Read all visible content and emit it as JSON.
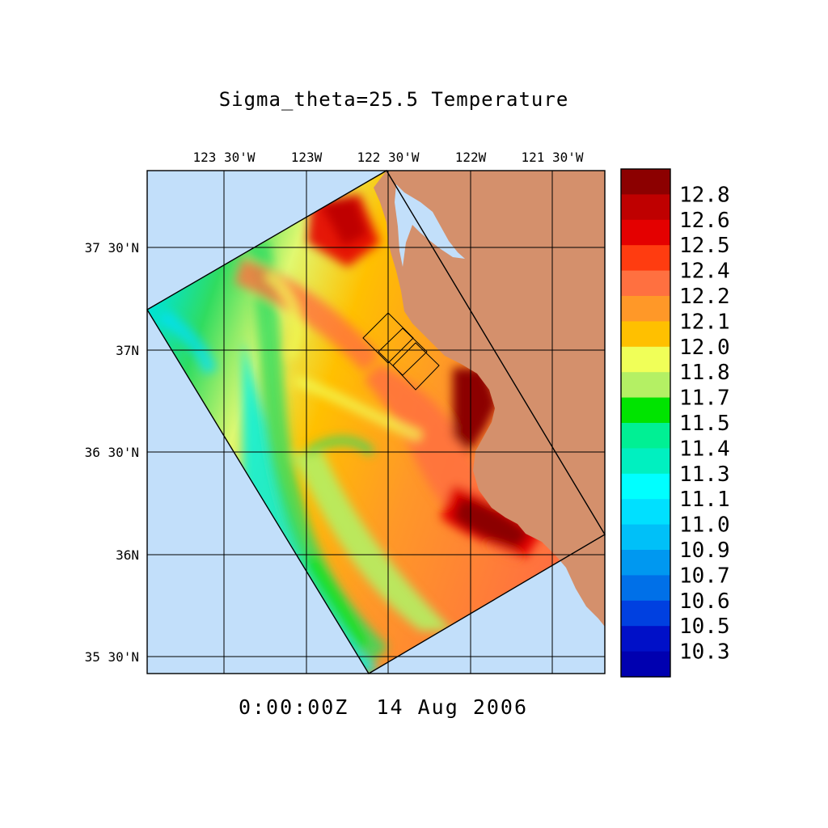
{
  "title": "Sigma_theta=25.5 Temperature",
  "timestamp": "0:00:00Z  14 Aug 2006",
  "map": {
    "lon_labels": [
      "123 30'W",
      "123W",
      "122 30'W",
      "122W",
      "121 30'W"
    ],
    "lat_labels": [
      "37 30'N",
      "37N",
      "36 30'N",
      "36N",
      "35 30'N"
    ],
    "colors": {
      "ocean": "#c2dffa",
      "land": "#d4906c",
      "grid": "#000000"
    }
  },
  "colorbar": {
    "labels": [
      "12.8",
      "12.6",
      "12.5",
      "12.4",
      "12.2",
      "12.1",
      "12.0",
      "11.8",
      "11.7",
      "11.5",
      "11.4",
      "11.3",
      "11.1",
      "11.0",
      "10.9",
      "10.7",
      "10.6",
      "10.5",
      "10.3"
    ],
    "colors": [
      "#8c0000",
      "#bf0000",
      "#e40000",
      "#ff3c10",
      "#ff7040",
      "#ff9828",
      "#ffc000",
      "#f0ff58",
      "#b4f064",
      "#00e400",
      "#00f094",
      "#00f0c0",
      "#00ffff",
      "#00e0ff",
      "#00c0f8",
      "#0098f0",
      "#0070e8",
      "#0040e0",
      "#0010c8"
    ]
  }
}
